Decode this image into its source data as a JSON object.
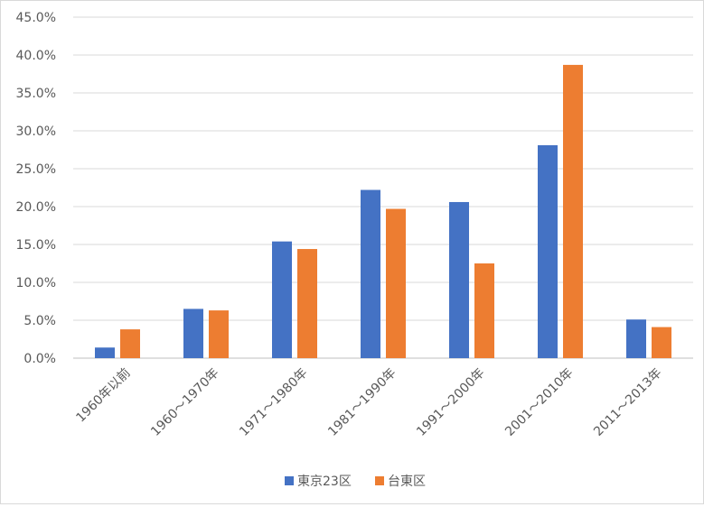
{
  "chart_data": {
    "type": "bar",
    "title": "",
    "xlabel": "",
    "ylabel": "",
    "categories": [
      "1960年以前",
      "1960～1970年",
      "1971～1980年",
      "1981～1990年",
      "1991～2000年",
      "2001～2010年",
      "2011～2013年"
    ],
    "series": [
      {
        "name": "東京23区",
        "color": "#4472c4",
        "values": [
          1.4,
          6.5,
          15.4,
          22.2,
          20.6,
          28.1,
          5.1
        ]
      },
      {
        "name": "台東区",
        "color": "#ed7d31",
        "values": [
          3.8,
          6.3,
          14.4,
          19.7,
          12.5,
          38.7,
          4.1
        ]
      }
    ],
    "ylim": [
      0,
      45
    ],
    "y_ticks": [
      "0.0%",
      "5.0%",
      "10.0%",
      "15.0%",
      "20.0%",
      "25.0%",
      "30.0%",
      "35.0%",
      "40.0%",
      "45.0%"
    ],
    "y_unit": "percent",
    "grid": true,
    "legend_position": "bottom"
  }
}
